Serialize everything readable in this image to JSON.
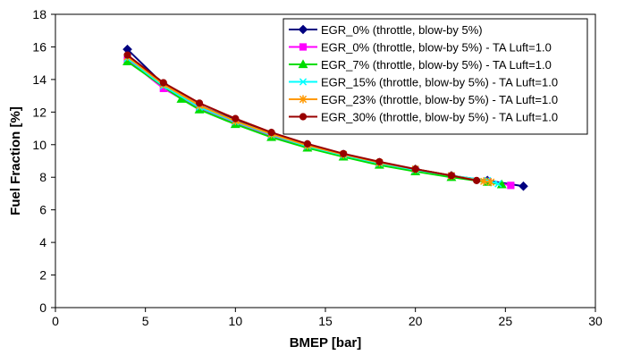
{
  "chart_data": {
    "type": "line",
    "title": "",
    "xlabel": "BMEP [bar]",
    "ylabel": "Fuel Fraction [%]",
    "xlim": [
      0,
      30
    ],
    "ylim": [
      0,
      18
    ],
    "xticks": [
      0,
      5,
      10,
      15,
      20,
      25,
      30
    ],
    "yticks": [
      0,
      2,
      4,
      6,
      8,
      10,
      12,
      14,
      16,
      18
    ],
    "grid": false,
    "legend_position": "top-right",
    "series": [
      {
        "name": "EGR_0% (throttle, blow-by 5%)",
        "color": "#000080",
        "marker": "diamond",
        "points": [
          [
            4,
            15.85
          ],
          [
            6,
            13.7
          ],
          [
            8,
            12.4
          ],
          [
            10,
            11.5
          ],
          [
            12,
            10.7
          ],
          [
            14,
            10.0
          ],
          [
            16,
            9.4
          ],
          [
            18,
            8.9
          ],
          [
            20,
            8.5
          ],
          [
            22,
            8.1
          ],
          [
            24,
            7.8
          ],
          [
            26,
            7.45
          ]
        ]
      },
      {
        "name": "EGR_0% (throttle, blow-by 5%) - TA Luft=1.0",
        "color": "#ff00ff",
        "marker": "square",
        "points": [
          [
            4,
            15.2
          ],
          [
            6,
            13.45
          ],
          [
            8,
            12.2
          ],
          [
            10,
            11.3
          ],
          [
            12,
            10.5
          ],
          [
            14,
            9.85
          ],
          [
            16,
            9.3
          ],
          [
            18,
            8.8
          ],
          [
            20,
            8.4
          ],
          [
            22,
            8.05
          ],
          [
            24,
            7.75
          ],
          [
            25.3,
            7.5
          ]
        ]
      },
      {
        "name": "EGR_7% (throttle, blow-by 5%) - TA Luft=1.0",
        "color": "#00dd00",
        "marker": "triangle",
        "points": [
          [
            4,
            15.1
          ],
          [
            7,
            12.8
          ],
          [
            8,
            12.15
          ],
          [
            10,
            11.25
          ],
          [
            12,
            10.45
          ],
          [
            14,
            9.8
          ],
          [
            16,
            9.25
          ],
          [
            18,
            8.75
          ],
          [
            20,
            8.35
          ],
          [
            22,
            8.0
          ],
          [
            24,
            7.7
          ],
          [
            24.8,
            7.55
          ]
        ]
      },
      {
        "name": "EGR_15% (throttle, blow-by 5%) - TA Luft=1.0",
        "color": "#00ffff",
        "marker": "x",
        "points": [
          [
            4,
            15.3
          ],
          [
            6,
            13.6
          ],
          [
            8,
            12.3
          ],
          [
            10,
            11.4
          ],
          [
            12,
            10.6
          ],
          [
            14,
            9.9
          ],
          [
            16,
            9.35
          ],
          [
            18,
            8.85
          ],
          [
            20,
            8.45
          ],
          [
            22,
            8.1
          ],
          [
            24,
            7.8
          ],
          [
            24.6,
            7.6
          ]
        ]
      },
      {
        "name": "EGR_23% (throttle, blow-by 5%) - TA Luft=1.0",
        "color": "#ff9900",
        "marker": "star",
        "points": [
          [
            4,
            15.4
          ],
          [
            6,
            13.7
          ],
          [
            8,
            12.4
          ],
          [
            10,
            11.45
          ],
          [
            12,
            10.65
          ],
          [
            14,
            9.95
          ],
          [
            16,
            9.4
          ],
          [
            18,
            8.9
          ],
          [
            20,
            8.5
          ],
          [
            22,
            8.1
          ],
          [
            23.8,
            7.75
          ],
          [
            24.2,
            7.7
          ]
        ]
      },
      {
        "name": "EGR_30% (throttle, blow-by 5%) - TA Luft=1.0",
        "color": "#990000",
        "marker": "circle",
        "points": [
          [
            4,
            15.5
          ],
          [
            6,
            13.8
          ],
          [
            8,
            12.55
          ],
          [
            10,
            11.6
          ],
          [
            12,
            10.75
          ],
          [
            14,
            10.05
          ],
          [
            16,
            9.45
          ],
          [
            18,
            8.95
          ],
          [
            20,
            8.5
          ],
          [
            22,
            8.1
          ],
          [
            23.4,
            7.8
          ]
        ]
      }
    ]
  }
}
